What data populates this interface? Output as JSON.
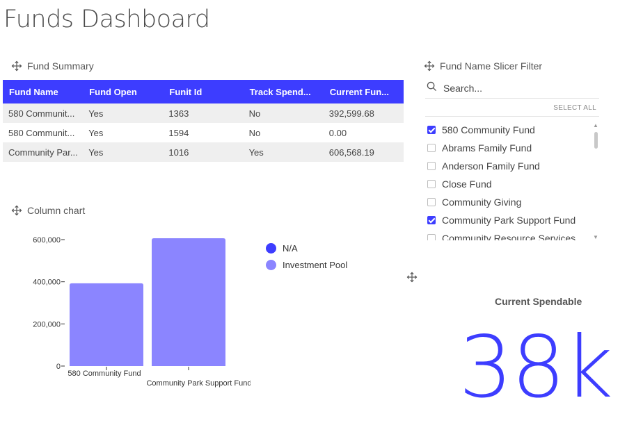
{
  "page": {
    "title": "Funds Dashboard"
  },
  "fund_summary": {
    "title": "Fund Summary",
    "columns": [
      "Fund Name",
      "Fund Open",
      "Funit Id",
      "Track Spend...",
      "Current Fun..."
    ],
    "rows": [
      [
        "580 Communit...",
        "Yes",
        "1363",
        "No",
        "392,599.68"
      ],
      [
        "580 Communit...",
        "Yes",
        "1594",
        "No",
        "0.00"
      ],
      [
        "Community Par...",
        "Yes",
        "1016",
        "Yes",
        "606,568.19"
      ]
    ]
  },
  "slicer": {
    "title": "Fund Name Slicer Filter",
    "search_placeholder": "Search...",
    "select_all": "SELECT ALL",
    "items": [
      {
        "label": "580 Community Fund",
        "checked": true
      },
      {
        "label": "Abrams Family Fund",
        "checked": false
      },
      {
        "label": "Anderson Family Fund",
        "checked": false
      },
      {
        "label": "Close Fund",
        "checked": false
      },
      {
        "label": "Community Giving",
        "checked": false
      },
      {
        "label": "Community Park Support Fund",
        "checked": true
      },
      {
        "label": "Community Resource Services",
        "checked": false
      }
    ]
  },
  "column_chart": {
    "title": "Column chart"
  },
  "chart_data": {
    "type": "bar",
    "categories": [
      "580 Community Fund",
      "Community Park Support Fund"
    ],
    "series": [
      {
        "name": "Investment Pool",
        "values": [
          392599.68,
          606568.19
        ],
        "color": "#8b85ff"
      }
    ],
    "legend": [
      {
        "name": "N/A",
        "color": "#3d3dff"
      },
      {
        "name": "Investment Pool",
        "color": "#8b85ff"
      }
    ],
    "ylim": [
      0,
      600000
    ],
    "yticks": [
      "600,000",
      "400,000",
      "200,000",
      "0"
    ],
    "ytick_values": [
      600000,
      400000,
      200000,
      0
    ],
    "legend_position": "top-right",
    "grid": false
  },
  "kpi": {
    "label": "Current Spendable",
    "value": "38k"
  },
  "colors": {
    "accent": "#3d3dff",
    "bar": "#8b85ff"
  }
}
